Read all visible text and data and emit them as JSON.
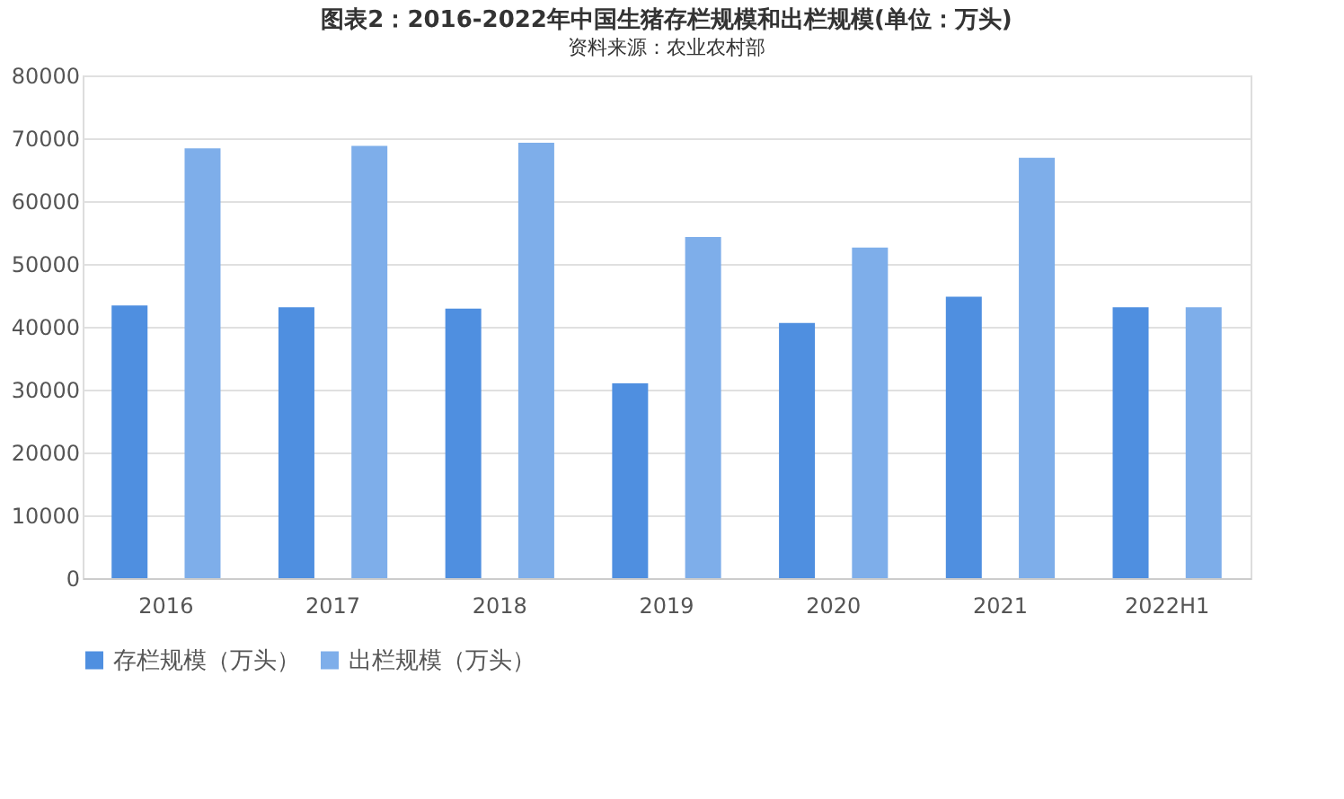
{
  "chart_data": {
    "type": "bar",
    "title": "图表2：2016-2022年中国生猪存栏规模和出栏规模(单位：万头)",
    "categories": [
      "2016",
      "2017",
      "2018",
      "2019",
      "2020",
      "2021",
      "2022H1"
    ],
    "series": [
      {
        "name": "存栏规模（万头）",
        "color": "#4f8fe0",
        "values": [
          43400,
          43100,
          42900,
          31000,
          40600,
          44800,
          43100
        ]
      },
      {
        "name": "出栏规模（万头）",
        "color": "#7eaeea",
        "values": [
          68400,
          68800,
          69300,
          54300,
          52600,
          66900,
          43100
        ]
      }
    ],
    "ylim": [
      0,
      80000
    ],
    "yticks": [
      0,
      10000,
      20000,
      30000,
      40000,
      50000,
      60000,
      70000,
      80000
    ],
    "grid": "y",
    "legend": "bottom",
    "annotations": [
      "资料来源：农业农村部"
    ]
  }
}
